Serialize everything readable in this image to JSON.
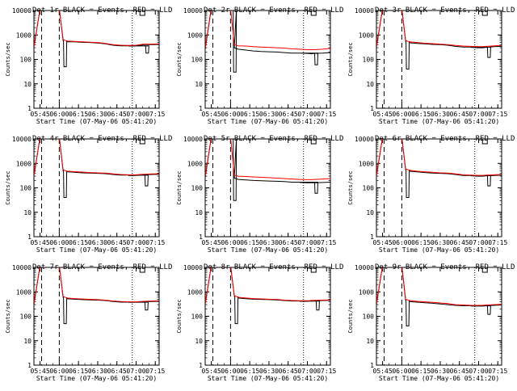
{
  "figure": {
    "axis_labels": {
      "y": "Counts/sec",
      "x": "Start Time (07-May-06 05:41:20)"
    },
    "x_ticks": [
      "05:45",
      "06:00",
      "06:15",
      "06:30",
      "06:45",
      "07:00",
      "07:15"
    ],
    "y_ticks": [
      "1",
      "10",
      "100",
      "1000",
      "10000"
    ],
    "series_names": [
      "Events",
      "LLD"
    ],
    "colors": {
      "events": "#000000",
      "lld": "#ff0000",
      "axes": "#000000",
      "background": "#ffffff"
    }
  },
  "chart_data": [
    {
      "type": "line",
      "title": "Det 1r BLACK = Events, RED = LLD",
      "xlabel": "Start Time (07-May-06 05:41:20)",
      "ylabel": "Counts/sec",
      "xlim": [
        5.67,
        7.3
      ],
      "ylim": [
        1,
        10000
      ],
      "yscale": "log",
      "x": [
        5.67,
        5.75,
        5.83,
        5.92,
        6.0,
        6.05,
        6.1,
        6.2,
        6.3,
        6.4,
        6.5,
        6.6,
        6.7,
        6.8,
        6.9,
        7.0,
        7.05,
        7.1,
        7.2,
        7.3
      ],
      "series": [
        {
          "name": "Events",
          "values": [
            300,
            12000,
            12000,
            12000,
            12000,
            600,
            530,
            520,
            500,
            490,
            470,
            430,
            380,
            360,
            350,
            360,
            380,
            400,
            400,
            410
          ]
        },
        {
          "name": "LLD",
          "values": [
            320,
            12000,
            12000,
            12000,
            12000,
            650,
            560,
            540,
            520,
            505,
            490,
            450,
            400,
            380,
            370,
            380,
            400,
            420,
            420,
            430
          ]
        }
      ],
      "dips": [
        {
          "series": "Events",
          "x": 6.06,
          "value": 50
        },
        {
          "series": "Events",
          "x": 7.13,
          "value": 180
        }
      ],
      "verticals": [
        {
          "x": 5.77,
          "style": "dashed"
        },
        {
          "x": 6.0,
          "style": "dashed"
        },
        {
          "x": 6.95,
          "style": "dotted"
        }
      ]
    },
    {
      "type": "line",
      "title": "Det 2r BLACK = Events, RED = LLD",
      "xlabel": "Start Time (07-May-06 05:41:20)",
      "ylabel": "Counts/sec",
      "xlim": [
        5.67,
        7.3
      ],
      "ylim": [
        1,
        10000
      ],
      "yscale": "log",
      "x": [
        5.67,
        5.75,
        5.83,
        5.92,
        6.0,
        6.05,
        6.1,
        6.2,
        6.3,
        6.4,
        6.5,
        6.6,
        6.7,
        6.8,
        6.9,
        7.0,
        7.05,
        7.1,
        7.2,
        7.3
      ],
      "series": [
        {
          "name": "Events",
          "values": [
            260,
            12000,
            12000,
            12000,
            12000,
            300,
            260,
            240,
            220,
            210,
            205,
            200,
            190,
            180,
            180,
            175,
            170,
            175,
            180,
            190
          ]
        },
        {
          "name": "LLD",
          "values": [
            300,
            12000,
            12000,
            12000,
            12000,
            400,
            360,
            350,
            330,
            320,
            310,
            300,
            290,
            270,
            260,
            250,
            250,
            250,
            260,
            280
          ]
        }
      ],
      "dips": [
        {
          "series": "Events",
          "x": 6.04,
          "value": 30
        },
        {
          "series": "Events",
          "x": 7.1,
          "value": 60
        }
      ],
      "verticals": [
        {
          "x": 5.77,
          "style": "dashed"
        },
        {
          "x": 6.0,
          "style": "dashed"
        },
        {
          "x": 6.95,
          "style": "dotted"
        }
      ]
    },
    {
      "type": "line",
      "title": "Det 3r BLACK = Events, RED = LLD",
      "xlabel": "Start Time (07-May-06 05:41:20)",
      "ylabel": "Counts/sec",
      "xlim": [
        5.67,
        7.3
      ],
      "ylim": [
        1,
        10000
      ],
      "yscale": "log",
      "x": [
        5.67,
        5.75,
        5.83,
        5.92,
        6.0,
        6.05,
        6.1,
        6.2,
        6.3,
        6.4,
        6.5,
        6.6,
        6.7,
        6.8,
        6.9,
        7.0,
        7.05,
        7.1,
        7.2,
        7.3
      ],
      "series": [
        {
          "name": "Events",
          "values": [
            300,
            12000,
            12000,
            12000,
            12000,
            550,
            480,
            450,
            430,
            410,
            400,
            380,
            340,
            320,
            310,
            300,
            300,
            310,
            330,
            340
          ]
        },
        {
          "name": "LLD",
          "values": [
            320,
            12000,
            12000,
            12000,
            12000,
            600,
            520,
            490,
            460,
            440,
            420,
            400,
            370,
            350,
            340,
            330,
            330,
            340,
            360,
            370
          ]
        }
      ],
      "dips": [
        {
          "series": "Events",
          "x": 6.06,
          "value": 40
        },
        {
          "series": "Events",
          "x": 7.12,
          "value": 120
        }
      ],
      "verticals": [
        {
          "x": 5.77,
          "style": "dashed"
        },
        {
          "x": 6.0,
          "style": "dashed"
        },
        {
          "x": 6.95,
          "style": "dotted"
        }
      ]
    },
    {
      "type": "line",
      "title": "Det 4r BLACK = Events, RED = LLD",
      "xlabel": "Start Time (07-May-06 05:41:20)",
      "ylabel": "Counts/sec",
      "xlim": [
        5.67,
        7.3
      ],
      "ylim": [
        1,
        10000
      ],
      "yscale": "log",
      "x": [
        5.67,
        5.75,
        5.83,
        5.92,
        6.0,
        6.05,
        6.1,
        6.2,
        6.3,
        6.4,
        6.5,
        6.6,
        6.7,
        6.8,
        6.9,
        7.0,
        7.05,
        7.1,
        7.2,
        7.3
      ],
      "series": [
        {
          "name": "Events",
          "values": [
            300,
            12000,
            12000,
            12000,
            12000,
            500,
            450,
            430,
            410,
            400,
            390,
            380,
            350,
            330,
            320,
            320,
            330,
            340,
            350,
            360
          ]
        },
        {
          "name": "LLD",
          "values": [
            320,
            12000,
            12000,
            12000,
            12000,
            550,
            480,
            460,
            440,
            420,
            410,
            400,
            370,
            350,
            340,
            340,
            350,
            360,
            370,
            380
          ]
        }
      ],
      "dips": [
        {
          "series": "Events",
          "x": 6.06,
          "value": 40
        },
        {
          "series": "Events",
          "x": 7.12,
          "value": 120
        }
      ],
      "verticals": [
        {
          "x": 5.77,
          "style": "dashed"
        },
        {
          "x": 6.0,
          "style": "dashed"
        },
        {
          "x": 6.95,
          "style": "dotted"
        }
      ]
    },
    {
      "type": "line",
      "title": "Det 5r BLACK = Events, RED = LLD",
      "xlabel": "Start Time (07-May-06 05:41:20)",
      "ylabel": "Counts/sec",
      "xlim": [
        5.67,
        7.3
      ],
      "ylim": [
        1,
        10000
      ],
      "yscale": "log",
      "x": [
        5.67,
        5.75,
        5.83,
        5.92,
        6.0,
        6.05,
        6.1,
        6.2,
        6.3,
        6.4,
        6.5,
        6.6,
        6.7,
        6.8,
        6.9,
        7.0,
        7.05,
        7.1,
        7.2,
        7.3
      ],
      "series": [
        {
          "name": "Events",
          "values": [
            260,
            12000,
            12000,
            12000,
            12000,
            250,
            220,
            210,
            200,
            195,
            190,
            185,
            180,
            170,
            165,
            160,
            160,
            160,
            165,
            170
          ]
        },
        {
          "name": "LLD",
          "values": [
            300,
            12000,
            12000,
            12000,
            12000,
            330,
            300,
            290,
            280,
            270,
            260,
            250,
            240,
            230,
            220,
            215,
            215,
            220,
            230,
            240
          ]
        }
      ],
      "dips": [
        {
          "series": "Events",
          "x": 6.04,
          "value": 30
        },
        {
          "series": "Events",
          "x": 7.1,
          "value": 60
        }
      ],
      "verticals": [
        {
          "x": 5.77,
          "style": "dashed"
        },
        {
          "x": 6.0,
          "style": "dashed"
        },
        {
          "x": 6.95,
          "style": "dotted"
        }
      ]
    },
    {
      "type": "line",
      "title": "Det 6r BLACK = Events, RED = LLD",
      "xlabel": "Start Time (07-May-06 05:41:20)",
      "ylabel": "Counts/sec",
      "xlim": [
        5.67,
        7.3
      ],
      "ylim": [
        1,
        10000
      ],
      "yscale": "log",
      "x": [
        5.67,
        5.75,
        5.83,
        5.92,
        6.0,
        6.05,
        6.1,
        6.2,
        6.3,
        6.4,
        6.5,
        6.6,
        6.7,
        6.8,
        6.9,
        7.0,
        7.05,
        7.1,
        7.2,
        7.3
      ],
      "series": [
        {
          "name": "Events",
          "values": [
            300,
            12000,
            12000,
            12000,
            12000,
            550,
            480,
            450,
            420,
            400,
            390,
            380,
            350,
            320,
            310,
            300,
            300,
            310,
            320,
            330
          ]
        },
        {
          "name": "LLD",
          "values": [
            320,
            12000,
            12000,
            12000,
            12000,
            600,
            520,
            480,
            450,
            430,
            410,
            400,
            370,
            340,
            330,
            320,
            320,
            330,
            340,
            350
          ]
        }
      ],
      "dips": [
        {
          "series": "Events",
          "x": 6.06,
          "value": 40
        },
        {
          "series": "Events",
          "x": 7.12,
          "value": 120
        }
      ],
      "verticals": [
        {
          "x": 5.77,
          "style": "dashed"
        },
        {
          "x": 6.0,
          "style": "dashed"
        },
        {
          "x": 6.95,
          "style": "dotted"
        }
      ]
    },
    {
      "type": "line",
      "title": "Det 7r BLACK = Events, RED = LLD",
      "xlabel": "Start Time (07-May-06 05:41:20)",
      "ylabel": "Counts/sec",
      "xlim": [
        5.67,
        7.3
      ],
      "ylim": [
        1,
        10000
      ],
      "yscale": "log",
      "x": [
        5.67,
        5.75,
        5.83,
        5.92,
        6.0,
        6.05,
        6.1,
        6.2,
        6.3,
        6.4,
        6.5,
        6.6,
        6.7,
        6.8,
        6.9,
        7.0,
        7.05,
        7.1,
        7.2,
        7.3
      ],
      "series": [
        {
          "name": "Events",
          "values": [
            300,
            12000,
            12000,
            12000,
            12000,
            600,
            520,
            500,
            480,
            470,
            460,
            440,
            400,
            380,
            370,
            370,
            380,
            390,
            400,
            410
          ]
        },
        {
          "name": "LLD",
          "values": [
            320,
            12000,
            12000,
            12000,
            12000,
            650,
            560,
            530,
            510,
            495,
            480,
            460,
            420,
            400,
            390,
            390,
            400,
            410,
            420,
            430
          ]
        }
      ],
      "dips": [
        {
          "series": "Events",
          "x": 6.06,
          "value": 50
        },
        {
          "series": "Events",
          "x": 7.12,
          "value": 180
        }
      ],
      "verticals": [
        {
          "x": 5.77,
          "style": "dashed"
        },
        {
          "x": 6.0,
          "style": "dashed"
        },
        {
          "x": 6.95,
          "style": "dotted"
        }
      ]
    },
    {
      "type": "line",
      "title": "Det 8r BLACK = Events, RED = LLD",
      "xlabel": "Start Time (07-May-06 05:41:20)",
      "ylabel": "Counts/sec",
      "xlim": [
        5.67,
        7.3
      ],
      "ylim": [
        1,
        10000
      ],
      "yscale": "log",
      "x": [
        5.67,
        5.75,
        5.83,
        5.92,
        6.0,
        6.05,
        6.1,
        6.2,
        6.3,
        6.4,
        6.5,
        6.6,
        6.7,
        6.8,
        6.9,
        7.0,
        7.05,
        7.1,
        7.2,
        7.3
      ],
      "series": [
        {
          "name": "Events",
          "values": [
            300,
            12000,
            12000,
            12000,
            12000,
            650,
            560,
            520,
            500,
            490,
            480,
            470,
            440,
            420,
            410,
            410,
            420,
            430,
            440,
            450
          ]
        },
        {
          "name": "LLD",
          "values": [
            320,
            12000,
            12000,
            12000,
            12000,
            700,
            600,
            560,
            530,
            515,
            500,
            490,
            460,
            440,
            430,
            430,
            440,
            450,
            460,
            470
          ]
        }
      ],
      "dips": [
        {
          "series": "Events",
          "x": 6.06,
          "value": 50
        },
        {
          "series": "Events",
          "x": 7.12,
          "value": 180
        }
      ],
      "verticals": [
        {
          "x": 5.77,
          "style": "dashed"
        },
        {
          "x": 6.0,
          "style": "dashed"
        },
        {
          "x": 6.95,
          "style": "dotted"
        }
      ]
    },
    {
      "type": "line",
      "title": "Det 9r BLACK = Events, RED = LLD",
      "xlabel": "Start Time (07-May-06 05:41:20)",
      "ylabel": "Counts/sec",
      "xlim": [
        5.67,
        7.3
      ],
      "ylim": [
        1,
        10000
      ],
      "yscale": "log",
      "x": [
        5.67,
        5.75,
        5.83,
        5.92,
        6.0,
        6.05,
        6.1,
        6.2,
        6.3,
        6.4,
        6.5,
        6.6,
        6.7,
        6.8,
        6.9,
        7.0,
        7.05,
        7.1,
        7.2,
        7.3
      ],
      "series": [
        {
          "name": "Events",
          "values": [
            300,
            12000,
            12000,
            12000,
            12000,
            450,
            400,
            380,
            360,
            340,
            320,
            300,
            280,
            270,
            260,
            260,
            260,
            270,
            280,
            290
          ]
        },
        {
          "name": "LLD",
          "values": [
            320,
            12000,
            12000,
            12000,
            12000,
            500,
            440,
            410,
            390,
            370,
            350,
            330,
            300,
            290,
            280,
            280,
            280,
            290,
            300,
            310
          ]
        }
      ],
      "dips": [
        {
          "series": "Events",
          "x": 6.06,
          "value": 40
        },
        {
          "series": "Events",
          "x": 7.12,
          "value": 120
        }
      ],
      "verticals": [
        {
          "x": 5.77,
          "style": "dashed"
        },
        {
          "x": 6.0,
          "style": "dashed"
        },
        {
          "x": 6.95,
          "style": "dotted"
        }
      ]
    }
  ]
}
